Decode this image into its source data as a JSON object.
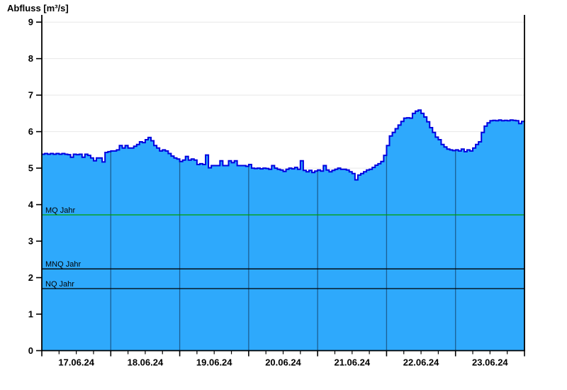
{
  "title": "Abfluss [m³/s]",
  "chart_data": {
    "type": "area",
    "title": "Abfluss [m³/s]",
    "ylabel": "Abfluss [m³/s]",
    "xlabel": "",
    "ylim": [
      0,
      9
    ],
    "y_ticks": [
      0,
      1,
      2,
      3,
      4,
      5,
      6,
      7,
      8,
      9
    ],
    "x_day_labels": [
      "17.06.24",
      "18.06.24",
      "19.06.24",
      "20.06.24",
      "21.06.24",
      "22.06.24",
      "23.06.24"
    ],
    "x_range_days": 7,
    "points_per_day": 24,
    "grid": "horizontal-light, day-boundary-lines-inside-area",
    "legend_position": "none",
    "series": [
      {
        "name": "Abfluss",
        "unit": "m³/s",
        "start": "17.06.24 00:00",
        "interval_hours": 1,
        "values": [
          5.38,
          5.4,
          5.38,
          5.4,
          5.38,
          5.4,
          5.38,
          5.4,
          5.38,
          5.37,
          5.3,
          5.38,
          5.37,
          5.38,
          5.3,
          5.38,
          5.35,
          5.28,
          5.2,
          5.28,
          5.28,
          5.17,
          5.43,
          5.45,
          5.47,
          5.47,
          5.5,
          5.62,
          5.55,
          5.62,
          5.55,
          5.55,
          5.6,
          5.65,
          5.72,
          5.7,
          5.78,
          5.84,
          5.75,
          5.62,
          5.55,
          5.47,
          5.5,
          5.47,
          5.4,
          5.33,
          5.28,
          5.25,
          5.18,
          5.22,
          5.32,
          5.22,
          5.25,
          5.22,
          5.1,
          5.12,
          5.1,
          5.36,
          5.01,
          5.07,
          5.07,
          5.07,
          5.2,
          5.07,
          5.07,
          5.2,
          5.15,
          5.2,
          5.07,
          5.07,
          5.07,
          5.05,
          5.1,
          5.0,
          4.99,
          5.0,
          4.98,
          5.0,
          4.99,
          4.97,
          5.07,
          5.0,
          4.97,
          4.95,
          4.91,
          4.97,
          5.0,
          4.98,
          5.02,
          4.97,
          5.2,
          4.94,
          4.9,
          4.94,
          4.88,
          4.92,
          4.95,
          4.92,
          5.07,
          4.95,
          4.9,
          4.94,
          4.97,
          5.0,
          4.97,
          4.97,
          4.95,
          4.9,
          4.85,
          4.68,
          4.81,
          4.85,
          4.9,
          4.95,
          4.97,
          5.02,
          5.08,
          5.12,
          5.18,
          5.35,
          5.62,
          5.88,
          5.98,
          6.08,
          6.18,
          6.28,
          6.37,
          6.38,
          6.37,
          6.5,
          6.56,
          6.59,
          6.5,
          6.4,
          6.27,
          6.11,
          5.98,
          5.85,
          5.78,
          5.65,
          5.58,
          5.52,
          5.5,
          5.48,
          5.5,
          5.47,
          5.52,
          5.45,
          5.5,
          5.47,
          5.55,
          5.65,
          5.72,
          5.98,
          6.15,
          6.24,
          6.3,
          6.31,
          6.3,
          6.32,
          6.3,
          6.31,
          6.3,
          6.32,
          6.31,
          6.3,
          6.22,
          6.28,
          6.3
        ]
      }
    ],
    "reference_lines": [
      {
        "label": "MQ Jahr",
        "value": 3.72,
        "color": "#00A000"
      },
      {
        "label": "MNQ Jahr",
        "value": 2.24,
        "color": "#000000"
      },
      {
        "label": "NQ Jahr",
        "value": 1.7,
        "color": "#000000"
      }
    ],
    "colors": {
      "area_fill": "#2EA9FC",
      "area_line": "#0000E0",
      "grid": "#E8E8E8",
      "day_line": "#1C5F93",
      "axis": "#000000"
    }
  }
}
